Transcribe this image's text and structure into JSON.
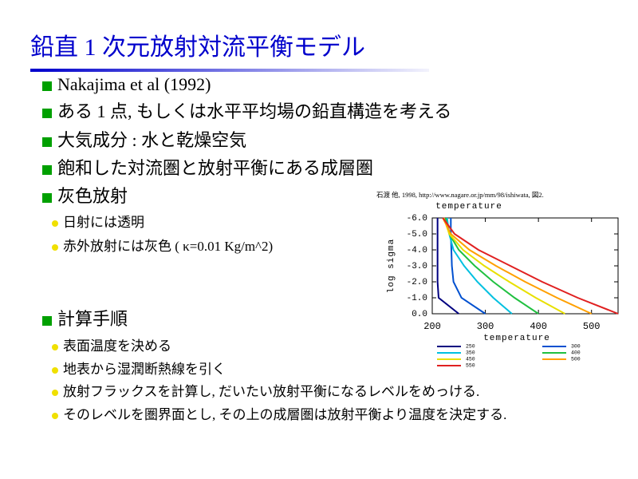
{
  "slide": {
    "title": "鉛直 1 次元放射対流平衡モデル",
    "bullets": [
      {
        "text": "Nakajima et al (1992)"
      },
      {
        "text": "ある 1 点, もしくは水平平均場の鉛直構造を考える"
      },
      {
        "text": "大気成分 : 水と乾燥空気"
      },
      {
        "text": "飽和した対流圏と放射平衡にある成層圏"
      },
      {
        "text": "灰色放射",
        "sub": [
          "日射には透明",
          "赤外放射には灰色 ( κ=0.01 Kg/m^2)"
        ]
      },
      {
        "text": "計算手順",
        "sub": [
          "表面温度を決める",
          "地表から湿潤断熱線を引く",
          "放射フラックスを計算し, だいたい放射平衡になるレベルをめっける.",
          "そのレベルを圏界面とし, その上の成層圏は放射平衡より温度を決定する."
        ]
      }
    ]
  },
  "chart_data": {
    "type": "line",
    "caption": "石渡 他, 1998, http://www.nagare.or.jp/mm/98/ishiwata, 図2.",
    "x_label": "temperature",
    "y_label": "log sigma",
    "xlim": [
      200,
      550
    ],
    "xticks": [
      200,
      300,
      400,
      500
    ],
    "ylim": [
      0,
      -6
    ],
    "yticks": [
      {
        "value": -6,
        "label": "-6.0"
      },
      {
        "value": -5,
        "label": "-5.0"
      },
      {
        "value": -4,
        "label": "-4.0"
      },
      {
        "value": -3,
        "label": "-3.0"
      },
      {
        "value": -2,
        "label": "-2.0"
      },
      {
        "value": -1,
        "label": "-1.0"
      },
      {
        "value": 0,
        "label": "0.0"
      }
    ],
    "series": [
      {
        "name": "250",
        "color": "#000080",
        "x": [
          210,
          210,
          210,
          210,
          210,
          212,
          250
        ],
        "values": [
          -6,
          -5,
          -4,
          -3,
          -2,
          -1,
          0
        ]
      },
      {
        "name": "300",
        "color": "#0050d0",
        "x": [
          235,
          235,
          236,
          237,
          240,
          255,
          300
        ],
        "values": [
          -6,
          -5,
          -4,
          -3,
          -2,
          -1,
          0
        ]
      },
      {
        "name": "350",
        "color": "#00c0e0",
        "x": [
          228,
          232,
          240,
          260,
          285,
          315,
          350
        ],
        "values": [
          -6,
          -5,
          -4,
          -3,
          -2,
          -1,
          0
        ]
      },
      {
        "name": "400",
        "color": "#20c040",
        "x": [
          225,
          232,
          250,
          280,
          315,
          355,
          400
        ],
        "values": [
          -6,
          -5,
          -4,
          -3,
          -2,
          -1,
          0
        ]
      },
      {
        "name": "450",
        "color": "#e8e000",
        "x": [
          222,
          232,
          258,
          298,
          345,
          395,
          450
        ],
        "values": [
          -6,
          -5,
          -4,
          -3,
          -2,
          -1,
          0
        ]
      },
      {
        "name": "500",
        "color": "#ffa000",
        "x": [
          220,
          235,
          270,
          320,
          375,
          435,
          500
        ],
        "values": [
          -6,
          -5,
          -4,
          -3,
          -2,
          -1,
          0
        ]
      },
      {
        "name": "550",
        "color": "#e02020",
        "x": [
          220,
          242,
          287,
          347,
          407,
          474,
          550
        ],
        "values": [
          -6,
          -5,
          -4,
          -3,
          -2,
          -1,
          0
        ]
      }
    ]
  }
}
